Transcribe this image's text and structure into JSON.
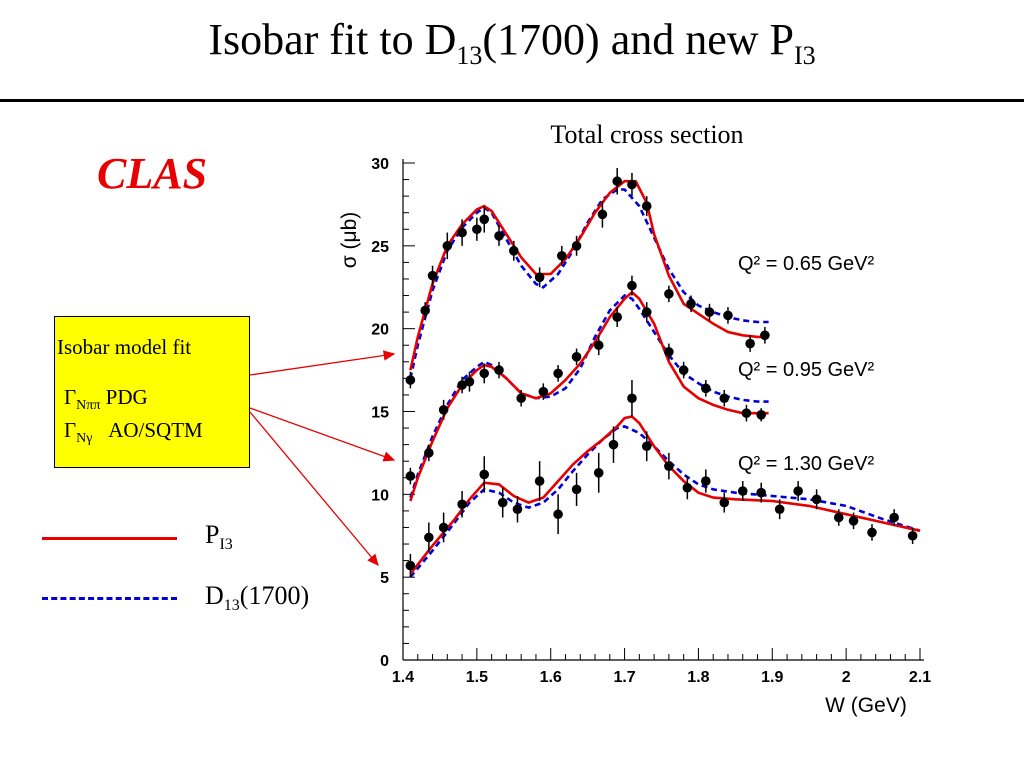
{
  "slide": {
    "title_pre": "Isobar fit to D",
    "title_sub1": "13",
    "title_mid": "(1700) and new P",
    "title_sub2": "I3",
    "collab": "CLAS"
  },
  "fit_box": {
    "line1": "Isobar model fit",
    "gamma": "Γ",
    "line2_sub": "Nππ",
    "line2_text": " PDG",
    "line3_sub": "Nγ",
    "line3_text": "   AO/SQTM",
    "bg_color": "#ffff00"
  },
  "legend": {
    "solid_main": "P",
    "solid_sub": "I3",
    "dash_main": "D",
    "dash_sub": "13",
    "dash_suffix": "(1700)",
    "solid_color": "#e60000",
    "dash_color": "#0000d8"
  },
  "chart_data": {
    "type": "scatter",
    "title": "Total cross section",
    "xlabel": "W (GeV)",
    "ylabel": "σ (μb)",
    "xlim": [
      1.4,
      2.1
    ],
    "ylim": [
      0,
      30
    ],
    "xticks": [
      "1.4",
      "1.5",
      "1.6",
      "1.7",
      "1.8",
      "1.9",
      "2",
      "2.1"
    ],
    "yticks": [
      "0",
      "5",
      "10",
      "15",
      "20",
      "25",
      "30"
    ],
    "series": [
      {
        "name": "Q² = 0.65 GeV²",
        "points": [
          [
            1.41,
            16.9,
            0.5
          ],
          [
            1.43,
            21.1,
            0.5
          ],
          [
            1.44,
            23.2,
            0.6
          ],
          [
            1.46,
            25.0,
            0.8
          ],
          [
            1.48,
            25.8,
            0.8
          ],
          [
            1.5,
            26.0,
            0.7
          ],
          [
            1.51,
            26.6,
            0.8
          ],
          [
            1.53,
            25.6,
            0.6
          ],
          [
            1.55,
            24.7,
            0.6
          ],
          [
            1.585,
            23.1,
            0.6
          ],
          [
            1.615,
            24.4,
            0.6
          ],
          [
            1.635,
            25.0,
            0.6
          ],
          [
            1.67,
            26.9,
            0.8
          ],
          [
            1.69,
            28.9,
            0.8
          ],
          [
            1.71,
            28.7,
            0.7
          ],
          [
            1.73,
            27.4,
            0.6
          ],
          [
            1.76,
            22.1,
            0.5
          ],
          [
            1.79,
            21.5,
            0.5
          ],
          [
            1.815,
            21.0,
            0.5
          ],
          [
            1.84,
            20.8,
            0.5
          ],
          [
            1.87,
            19.1,
            0.5
          ],
          [
            1.89,
            19.6,
            0.5
          ]
        ],
        "fit_pi3": [
          [
            1.41,
            17.5
          ],
          [
            1.42,
            19.5
          ],
          [
            1.44,
            22.7
          ],
          [
            1.46,
            25.0
          ],
          [
            1.48,
            26.3
          ],
          [
            1.5,
            27.2
          ],
          [
            1.51,
            27.4
          ],
          [
            1.52,
            27.1
          ],
          [
            1.54,
            25.7
          ],
          [
            1.56,
            24.3
          ],
          [
            1.58,
            23.3
          ],
          [
            1.6,
            23.3
          ],
          [
            1.62,
            24.2
          ],
          [
            1.64,
            25.5
          ],
          [
            1.66,
            27.0
          ],
          [
            1.68,
            28.2
          ],
          [
            1.7,
            28.9
          ],
          [
            1.715,
            28.9
          ],
          [
            1.73,
            27.6
          ],
          [
            1.74,
            25.7
          ],
          [
            1.76,
            23.2
          ],
          [
            1.78,
            21.5
          ],
          [
            1.8,
            20.9
          ],
          [
            1.82,
            20.3
          ],
          [
            1.84,
            19.8
          ],
          [
            1.86,
            19.6
          ],
          [
            1.88,
            19.5
          ],
          [
            1.895,
            19.5
          ]
        ],
        "fit_d13": [
          [
            1.41,
            17.0
          ],
          [
            1.42,
            19.0
          ],
          [
            1.44,
            22.3
          ],
          [
            1.46,
            24.7
          ],
          [
            1.48,
            26.1
          ],
          [
            1.5,
            27.0
          ],
          [
            1.51,
            27.3
          ],
          [
            1.52,
            27.0
          ],
          [
            1.54,
            25.4
          ],
          [
            1.56,
            23.8
          ],
          [
            1.58,
            22.7
          ],
          [
            1.59,
            22.5
          ],
          [
            1.61,
            23.3
          ],
          [
            1.63,
            24.7
          ],
          [
            1.65,
            26.4
          ],
          [
            1.67,
            27.8
          ],
          [
            1.69,
            28.4
          ],
          [
            1.7,
            28.4
          ],
          [
            1.72,
            27.4
          ],
          [
            1.74,
            25.5
          ],
          [
            1.76,
            23.6
          ],
          [
            1.78,
            22.2
          ],
          [
            1.8,
            21.4
          ],
          [
            1.82,
            21.0
          ],
          [
            1.84,
            20.7
          ],
          [
            1.86,
            20.5
          ],
          [
            1.88,
            20.4
          ],
          [
            1.895,
            20.4
          ]
        ]
      },
      {
        "name": "Q² = 0.95 GeV²",
        "points": [
          [
            1.41,
            11.1,
            0.5
          ],
          [
            1.435,
            12.5,
            0.5
          ],
          [
            1.455,
            15.1,
            0.6
          ],
          [
            1.48,
            16.6,
            0.5
          ],
          [
            1.49,
            16.8,
            0.6
          ],
          [
            1.51,
            17.3,
            0.6
          ],
          [
            1.53,
            17.5,
            0.5
          ],
          [
            1.56,
            15.8,
            0.5
          ],
          [
            1.59,
            16.2,
            0.5
          ],
          [
            1.61,
            17.3,
            0.5
          ],
          [
            1.635,
            18.3,
            0.5
          ],
          [
            1.665,
            19.0,
            0.6
          ],
          [
            1.69,
            20.7,
            0.6
          ],
          [
            1.71,
            22.6,
            0.6
          ],
          [
            1.73,
            21.0,
            0.6
          ],
          [
            1.76,
            18.6,
            0.5
          ],
          [
            1.78,
            17.5,
            0.5
          ],
          [
            1.81,
            16.4,
            0.5
          ],
          [
            1.835,
            15.8,
            0.5
          ],
          [
            1.865,
            14.9,
            0.5
          ],
          [
            1.885,
            14.8,
            0.4
          ]
        ],
        "fit_pi3": [
          [
            1.41,
            9.6
          ],
          [
            1.42,
            11.0
          ],
          [
            1.44,
            13.2
          ],
          [
            1.46,
            15.2
          ],
          [
            1.48,
            16.6
          ],
          [
            1.5,
            17.5
          ],
          [
            1.51,
            17.8
          ],
          [
            1.52,
            17.7
          ],
          [
            1.54,
            17.0
          ],
          [
            1.56,
            16.1
          ],
          [
            1.58,
            15.8
          ],
          [
            1.6,
            16.1
          ],
          [
            1.62,
            16.9
          ],
          [
            1.64,
            17.9
          ],
          [
            1.66,
            19.2
          ],
          [
            1.68,
            20.7
          ],
          [
            1.7,
            21.8
          ],
          [
            1.71,
            22.2
          ],
          [
            1.72,
            21.8
          ],
          [
            1.74,
            20.3
          ],
          [
            1.76,
            18.0
          ],
          [
            1.78,
            16.5
          ],
          [
            1.8,
            15.8
          ],
          [
            1.82,
            15.4
          ],
          [
            1.84,
            15.1
          ],
          [
            1.86,
            14.9
          ],
          [
            1.88,
            14.9
          ],
          [
            1.895,
            14.9
          ]
        ],
        "fit_d13": [
          [
            1.41,
            9.8
          ],
          [
            1.42,
            11.2
          ],
          [
            1.44,
            13.5
          ],
          [
            1.46,
            15.4
          ],
          [
            1.48,
            16.9
          ],
          [
            1.5,
            17.7
          ],
          [
            1.51,
            18.0
          ],
          [
            1.52,
            17.8
          ],
          [
            1.54,
            17.0
          ],
          [
            1.56,
            16.1
          ],
          [
            1.58,
            15.8
          ],
          [
            1.6,
            15.9
          ],
          [
            1.62,
            16.4
          ],
          [
            1.64,
            17.6
          ],
          [
            1.66,
            19.5
          ],
          [
            1.68,
            21.1
          ],
          [
            1.7,
            22.0
          ],
          [
            1.71,
            21.8
          ],
          [
            1.72,
            21.2
          ],
          [
            1.74,
            19.8
          ],
          [
            1.76,
            18.4
          ],
          [
            1.78,
            17.3
          ],
          [
            1.8,
            16.7
          ],
          [
            1.82,
            16.2
          ],
          [
            1.84,
            15.9
          ],
          [
            1.86,
            15.7
          ],
          [
            1.88,
            15.6
          ],
          [
            1.895,
            15.6
          ]
        ]
      },
      {
        "name": "Q² = 1.30 GeV²",
        "points": [
          [
            1.41,
            5.7,
            0.7
          ],
          [
            1.435,
            7.4,
            0.9
          ],
          [
            1.455,
            8.0,
            0.9
          ],
          [
            1.48,
            9.4,
            0.8
          ],
          [
            1.51,
            11.2,
            1.1
          ],
          [
            1.535,
            9.5,
            0.9
          ],
          [
            1.555,
            9.1,
            0.8
          ],
          [
            1.585,
            10.8,
            1.2
          ],
          [
            1.61,
            8.8,
            1.2
          ],
          [
            1.635,
            10.3,
            1.0
          ],
          [
            1.665,
            11.3,
            1.2
          ],
          [
            1.685,
            13.0,
            1.1
          ],
          [
            1.71,
            15.8,
            1.1
          ],
          [
            1.73,
            12.9,
            0.9
          ],
          [
            1.76,
            11.7,
            0.8
          ],
          [
            1.785,
            10.4,
            0.7
          ],
          [
            1.81,
            10.8,
            0.7
          ],
          [
            1.835,
            9.5,
            0.6
          ],
          [
            1.86,
            10.2,
            0.6
          ],
          [
            1.885,
            10.1,
            0.6
          ],
          [
            1.91,
            9.1,
            0.6
          ],
          [
            1.935,
            10.2,
            0.6
          ],
          [
            1.96,
            9.7,
            0.6
          ],
          [
            1.99,
            8.6,
            0.5
          ],
          [
            2.01,
            8.4,
            0.5
          ],
          [
            2.035,
            7.7,
            0.5
          ],
          [
            2.065,
            8.6,
            0.5
          ],
          [
            2.09,
            7.5,
            0.5
          ]
        ],
        "fit_pi3": [
          [
            1.41,
            5.2
          ],
          [
            1.44,
            6.9
          ],
          [
            1.47,
            8.5
          ],
          [
            1.49,
            9.7
          ],
          [
            1.51,
            10.7
          ],
          [
            1.53,
            10.6
          ],
          [
            1.55,
            9.9
          ],
          [
            1.57,
            9.5
          ],
          [
            1.59,
            9.8
          ],
          [
            1.61,
            10.8
          ],
          [
            1.63,
            11.8
          ],
          [
            1.65,
            12.6
          ],
          [
            1.67,
            13.3
          ],
          [
            1.69,
            14.1
          ],
          [
            1.7,
            14.6
          ],
          [
            1.71,
            14.7
          ],
          [
            1.72,
            14.3
          ],
          [
            1.74,
            12.9
          ],
          [
            1.76,
            11.7
          ],
          [
            1.78,
            10.8
          ],
          [
            1.8,
            10.1
          ],
          [
            1.82,
            9.8
          ],
          [
            1.85,
            9.7
          ],
          [
            1.9,
            9.6
          ],
          [
            1.95,
            9.3
          ],
          [
            2.0,
            8.8
          ],
          [
            2.05,
            8.3
          ],
          [
            2.1,
            7.8
          ]
        ],
        "fit_d13": [
          [
            1.41,
            5.0
          ],
          [
            1.44,
            6.6
          ],
          [
            1.47,
            8.3
          ],
          [
            1.49,
            9.5
          ],
          [
            1.51,
            10.3
          ],
          [
            1.53,
            10.1
          ],
          [
            1.55,
            9.5
          ],
          [
            1.57,
            9.2
          ],
          [
            1.59,
            9.5
          ],
          [
            1.61,
            10.3
          ],
          [
            1.63,
            11.4
          ],
          [
            1.65,
            12.4
          ],
          [
            1.67,
            13.3
          ],
          [
            1.69,
            14.0
          ],
          [
            1.7,
            14.1
          ],
          [
            1.72,
            13.7
          ],
          [
            1.74,
            12.9
          ],
          [
            1.76,
            12.0
          ],
          [
            1.78,
            11.2
          ],
          [
            1.8,
            10.6
          ],
          [
            1.82,
            10.3
          ],
          [
            1.85,
            10.1
          ],
          [
            1.9,
            9.9
          ],
          [
            1.95,
            9.7
          ],
          [
            2.0,
            9.3
          ],
          [
            2.05,
            8.5
          ],
          [
            2.1,
            7.8
          ]
        ]
      }
    ]
  }
}
